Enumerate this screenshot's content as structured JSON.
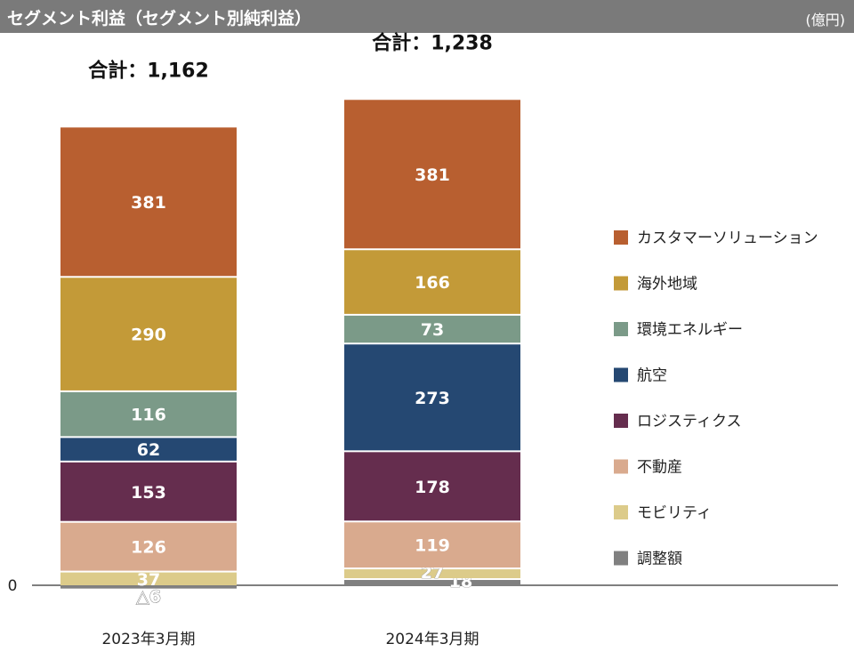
{
  "header": {
    "title": "セグメント利益（セグメント別純利益）",
    "unit": "(億円)"
  },
  "chart_data": {
    "type": "bar",
    "stacked": true,
    "categories": [
      "2023年3月期",
      "2024年3月期"
    ],
    "totals": [
      "合計：1,162",
      "合計：1,238"
    ],
    "zero_label": "0",
    "series": [
      {
        "name": "調整額",
        "color": "#808080",
        "values": [
          -6,
          18
        ],
        "labels": [
          "△6",
          "18"
        ]
      },
      {
        "name": "モビリティ",
        "color": "#dccb8a",
        "values": [
          37,
          27
        ],
        "labels": [
          "37",
          "27"
        ]
      },
      {
        "name": "不動産",
        "color": "#d9aa8e",
        "values": [
          126,
          119
        ],
        "labels": [
          "126",
          "119"
        ]
      },
      {
        "name": "ロジスティクス",
        "color": "#652d4e",
        "values": [
          153,
          178
        ],
        "labels": [
          "153",
          "178"
        ]
      },
      {
        "name": "航空",
        "color": "#254872",
        "values": [
          62,
          273
        ],
        "labels": [
          "62",
          "273"
        ]
      },
      {
        "name": "環境エネルギー",
        "color": "#7b9a88",
        "values": [
          116,
          73
        ],
        "labels": [
          "116",
          "73"
        ]
      },
      {
        "name": "海外地域",
        "color": "#c39a38",
        "values": [
          290,
          166
        ],
        "labels": [
          "290",
          "166"
        ]
      },
      {
        "name": "カスタマーソリューション",
        "color": "#b85f30",
        "values": [
          381,
          381
        ],
        "labels": [
          "381",
          "381"
        ]
      }
    ],
    "legend_order": [
      "カスタマーソリューション",
      "海外地域",
      "環境エネルギー",
      "航空",
      "ロジスティクス",
      "不動産",
      "モビリティ",
      "調整額"
    ],
    "legend_position": "right"
  }
}
